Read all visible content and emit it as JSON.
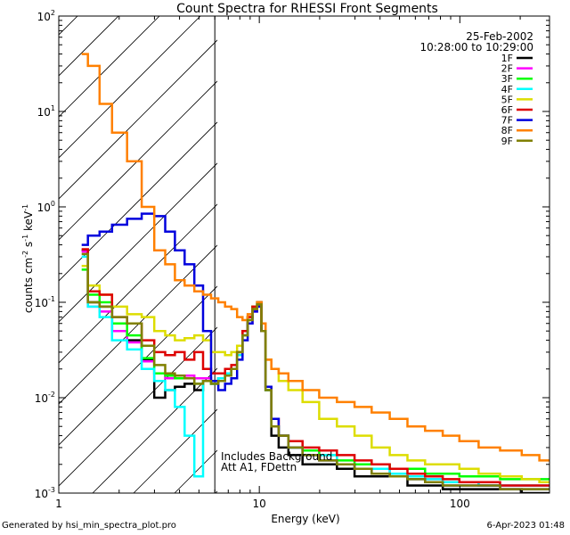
{
  "chart_data": {
    "type": "line",
    "title": "Count Spectra for RHESSI Front Segments",
    "xlabel": "Energy (keV)",
    "ylabel_main": "counts cm",
    "ylabel_sup1": "-2",
    "ylabel_mid": " s",
    "ylabel_sup2": "-1",
    "ylabel_end": " keV",
    "ylabel_sup3": "-1",
    "xscale": "log",
    "yscale": "log",
    "xlim": [
      1,
      280
    ],
    "ylim": [
      0.001,
      100
    ],
    "x_tick_labels": [
      {
        "value": 1,
        "label": "1"
      },
      {
        "value": 10,
        "label": "10"
      },
      {
        "value": 100,
        "label": "100"
      }
    ],
    "y_tick_labels": [
      {
        "value": 0.001,
        "base": "10",
        "exp": "-3"
      },
      {
        "value": 0.01,
        "base": "10",
        "exp": "-2"
      },
      {
        "value": 0.1,
        "base": "10",
        "exp": "-1"
      },
      {
        "value": 1,
        "base": "10",
        "exp": "0"
      },
      {
        "value": 10,
        "base": "10",
        "exp": "1"
      },
      {
        "value": 100,
        "base": "10",
        "exp": "2"
      }
    ],
    "date": "25-Feb-2002",
    "time_range": "10:28:00 to 10:29:00",
    "hatched_region": [
      1,
      6
    ],
    "annotation_line1": "Includes Background",
    "annotation_line2": "Att A1, FDettn",
    "legend_position": "top-right",
    "series": [
      {
        "name": "1F",
        "color": "#000000",
        "x": [
          1.3,
          1.5,
          1.7,
          2.0,
          2.4,
          2.8,
          3.2,
          3.6,
          4.0,
          4.5,
          5.0,
          5.5,
          6.0,
          6.5,
          7.0,
          7.5,
          8.0,
          8.5,
          9.0,
          9.5,
          10.0,
          10.5,
          11.0,
          12.0,
          13.0,
          15.0,
          18.0,
          22.0,
          27.0,
          33.0,
          40.0,
          50.0,
          60.0,
          75.0,
          90.0,
          110.0,
          140.0,
          180.0,
          230.0,
          270.0
        ],
        "y": [
          0.35,
          0.1,
          0.09,
          0.05,
          0.04,
          0.025,
          0.01,
          0.012,
          0.013,
          0.014,
          0.012,
          0.015,
          0.014,
          0.016,
          0.018,
          0.02,
          0.03,
          0.05,
          0.07,
          0.09,
          0.1,
          0.05,
          0.012,
          0.004,
          0.003,
          0.0025,
          0.002,
          0.002,
          0.0018,
          0.0015,
          0.0015,
          0.0015,
          0.0012,
          0.0012,
          0.0011,
          0.0011,
          0.0011,
          0.0011,
          0.001,
          0.001
        ]
      },
      {
        "name": "2F",
        "color": "#ff00ff",
        "x": [
          1.3,
          1.5,
          1.7,
          2.0,
          2.4,
          2.8,
          3.2,
          3.6,
          4.0,
          4.5,
          5.0,
          5.5,
          6.0,
          6.5,
          7.0,
          7.5,
          8.0,
          8.5,
          9.0,
          9.5,
          10.0,
          10.5,
          11.0,
          12.0,
          13.0,
          15.0,
          18.0,
          22.0,
          27.0,
          33.0,
          40.0,
          50.0,
          60.0,
          75.0,
          90.0,
          110.0,
          140.0,
          180.0,
          230.0,
          270.0
        ],
        "y": [
          0.34,
          0.09,
          0.08,
          0.05,
          0.038,
          0.024,
          0.018,
          0.016,
          0.017,
          0.017,
          0.016,
          0.016,
          0.015,
          0.016,
          0.018,
          0.02,
          0.028,
          0.045,
          0.06,
          0.08,
          0.09,
          0.05,
          0.012,
          0.005,
          0.004,
          0.003,
          0.0025,
          0.0025,
          0.002,
          0.0018,
          0.0018,
          0.0016,
          0.0015,
          0.0014,
          0.0013,
          0.0013,
          0.0012,
          0.0012,
          0.0012,
          0.0012
        ]
      },
      {
        "name": "3F",
        "color": "#00ff00",
        "x": [
          1.3,
          1.5,
          1.7,
          2.0,
          2.4,
          2.8,
          3.2,
          3.6,
          4.0,
          4.5,
          5.0,
          5.5,
          6.0,
          6.5,
          7.0,
          7.5,
          8.0,
          8.5,
          9.0,
          9.5,
          10.0,
          10.5,
          11.0,
          12.0,
          13.0,
          15.0,
          18.0,
          22.0,
          27.0,
          33.0,
          40.0,
          50.0,
          60.0,
          75.0,
          90.0,
          110.0,
          140.0,
          180.0,
          230.0,
          270.0
        ],
        "y": [
          0.22,
          0.12,
          0.1,
          0.06,
          0.045,
          0.026,
          0.018,
          0.017,
          0.016,
          0.016,
          0.014,
          0.015,
          0.014,
          0.016,
          0.017,
          0.02,
          0.03,
          0.045,
          0.07,
          0.09,
          0.1,
          0.05,
          0.012,
          0.005,
          0.004,
          0.003,
          0.0028,
          0.0025,
          0.0022,
          0.002,
          0.002,
          0.0018,
          0.0018,
          0.0016,
          0.0016,
          0.0015,
          0.0015,
          0.0014,
          0.0014,
          0.0014
        ]
      },
      {
        "name": "4F",
        "color": "#00ffff",
        "x": [
          1.3,
          1.5,
          1.7,
          2.0,
          2.4,
          2.8,
          3.2,
          3.6,
          4.0,
          4.5,
          5.0,
          5.5,
          6.0,
          6.5,
          7.0,
          7.5,
          8.0,
          8.5,
          9.0,
          9.5,
          10.0,
          10.5,
          11.0,
          12.0,
          13.0,
          15.0,
          18.0,
          22.0,
          27.0,
          33.0,
          40.0,
          50.0,
          60.0,
          75.0,
          90.0,
          110.0,
          140.0,
          180.0,
          230.0,
          270.0
        ],
        "y": [
          0.3,
          0.09,
          0.07,
          0.04,
          0.032,
          0.02,
          0.015,
          0.012,
          0.008,
          0.004,
          0.0015,
          0.015,
          0.014,
          0.016,
          0.018,
          0.02,
          0.028,
          0.045,
          0.065,
          0.085,
          0.095,
          0.05,
          0.012,
          0.005,
          0.004,
          0.003,
          0.0025,
          0.0025,
          0.002,
          0.0018,
          0.0018,
          0.0016,
          0.0015,
          0.0014,
          0.0013,
          0.0013,
          0.0012,
          0.0012,
          0.0012,
          0.0012
        ]
      },
      {
        "name": "5F",
        "color": "#dddd00",
        "x": [
          1.3,
          1.5,
          1.7,
          2.0,
          2.4,
          2.8,
          3.2,
          3.6,
          4.0,
          4.5,
          5.0,
          5.5,
          6.0,
          6.5,
          7.0,
          7.5,
          8.0,
          8.5,
          9.0,
          9.5,
          10.0,
          10.5,
          11.0,
          12.0,
          13.0,
          15.0,
          18.0,
          22.0,
          27.0,
          33.0,
          40.0,
          50.0,
          60.0,
          75.0,
          90.0,
          110.0,
          140.0,
          180.0,
          230.0,
          270.0
        ],
        "y": [
          0.24,
          0.15,
          0.12,
          0.09,
          0.075,
          0.07,
          0.05,
          0.045,
          0.04,
          0.042,
          0.045,
          0.04,
          0.03,
          0.03,
          0.028,
          0.03,
          0.035,
          0.05,
          0.07,
          0.09,
          0.1,
          0.06,
          0.025,
          0.02,
          0.015,
          0.012,
          0.009,
          0.006,
          0.005,
          0.004,
          0.003,
          0.0025,
          0.0022,
          0.002,
          0.002,
          0.0018,
          0.0016,
          0.0015,
          0.0014,
          0.0013
        ]
      },
      {
        "name": "6F",
        "color": "#dd0000",
        "x": [
          1.3,
          1.5,
          1.7,
          2.0,
          2.4,
          2.8,
          3.2,
          3.6,
          4.0,
          4.5,
          5.0,
          5.5,
          6.0,
          6.5,
          7.0,
          7.5,
          8.0,
          8.5,
          9.0,
          9.5,
          10.0,
          10.5,
          11.0,
          12.0,
          13.0,
          15.0,
          18.0,
          22.0,
          27.0,
          33.0,
          40.0,
          50.0,
          60.0,
          75.0,
          90.0,
          110.0,
          140.0,
          180.0,
          230.0,
          270.0
        ],
        "y": [
          0.36,
          0.13,
          0.12,
          0.07,
          0.06,
          0.04,
          0.03,
          0.028,
          0.03,
          0.025,
          0.03,
          0.02,
          0.018,
          0.018,
          0.02,
          0.022,
          0.03,
          0.05,
          0.07,
          0.09,
          0.1,
          0.05,
          0.013,
          0.006,
          0.004,
          0.0035,
          0.003,
          0.0028,
          0.0025,
          0.0022,
          0.002,
          0.0018,
          0.0016,
          0.0015,
          0.0014,
          0.0013,
          0.0013,
          0.0012,
          0.0012,
          0.0012
        ]
      },
      {
        "name": "7F",
        "color": "#0000dd",
        "x": [
          1.3,
          1.5,
          1.7,
          2.0,
          2.4,
          2.8,
          3.2,
          3.6,
          4.0,
          4.5,
          5.0,
          5.5,
          6.0,
          6.5,
          7.0,
          7.5,
          8.0,
          8.5,
          9.0,
          9.5,
          10.0,
          10.5,
          11.0,
          12.0,
          13.0,
          15.0,
          18.0,
          22.0,
          27.0,
          33.0,
          40.0,
          50.0,
          60.0,
          75.0,
          90.0,
          110.0,
          140.0,
          180.0,
          230.0,
          270.0
        ],
        "y": [
          0.4,
          0.5,
          0.55,
          0.65,
          0.75,
          0.85,
          0.8,
          0.55,
          0.35,
          0.25,
          0.15,
          0.05,
          0.015,
          0.012,
          0.014,
          0.016,
          0.025,
          0.04,
          0.06,
          0.08,
          0.09,
          0.05,
          0.013,
          0.006,
          0.004,
          0.003,
          0.0025,
          0.0022,
          0.002,
          0.0018,
          0.0016,
          0.0015,
          0.0014,
          0.0013,
          0.0012,
          0.0012,
          0.0012,
          0.0011,
          0.0011,
          0.0011
        ]
      },
      {
        "name": "8F",
        "color": "#ff8000",
        "x": [
          1.3,
          1.5,
          1.7,
          2.0,
          2.4,
          2.8,
          3.2,
          3.6,
          4.0,
          4.5,
          5.0,
          5.5,
          6.0,
          6.5,
          7.0,
          7.5,
          8.0,
          8.5,
          9.0,
          9.5,
          10.0,
          10.5,
          11.0,
          12.0,
          13.0,
          15.0,
          18.0,
          22.0,
          27.0,
          33.0,
          40.0,
          50.0,
          60.0,
          75.0,
          90.0,
          110.0,
          140.0,
          180.0,
          230.0,
          270.0
        ],
        "y": [
          40,
          30,
          12,
          6,
          3,
          1,
          0.35,
          0.25,
          0.17,
          0.15,
          0.13,
          0.12,
          0.11,
          0.1,
          0.09,
          0.085,
          0.07,
          0.065,
          0.075,
          0.085,
          0.1,
          0.06,
          0.025,
          0.02,
          0.018,
          0.015,
          0.012,
          0.01,
          0.009,
          0.008,
          0.007,
          0.006,
          0.005,
          0.0045,
          0.004,
          0.0035,
          0.003,
          0.0028,
          0.0025,
          0.0022
        ]
      },
      {
        "name": "9F",
        "color": "#808000",
        "x": [
          1.3,
          1.5,
          1.7,
          2.0,
          2.4,
          2.8,
          3.2,
          3.6,
          4.0,
          4.5,
          5.0,
          5.5,
          6.0,
          6.5,
          7.0,
          7.5,
          8.0,
          8.5,
          9.0,
          9.5,
          10.0,
          10.5,
          11.0,
          12.0,
          13.0,
          15.0,
          18.0,
          22.0,
          27.0,
          33.0,
          40.0,
          50.0,
          60.0,
          75.0,
          90.0,
          110.0,
          140.0,
          180.0,
          230.0,
          270.0
        ],
        "y": [
          0.32,
          0.1,
          0.09,
          0.07,
          0.06,
          0.035,
          0.022,
          0.018,
          0.017,
          0.016,
          0.014,
          0.015,
          0.014,
          0.015,
          0.017,
          0.02,
          0.03,
          0.045,
          0.065,
          0.085,
          0.095,
          0.05,
          0.012,
          0.005,
          0.004,
          0.003,
          0.0025,
          0.0022,
          0.002,
          0.0018,
          0.0016,
          0.0015,
          0.0014,
          0.0013,
          0.0012,
          0.0012,
          0.0012,
          0.0011,
          0.0011,
          0.0011
        ]
      }
    ]
  },
  "footer": {
    "generated_by": "Generated by hsi_min_spectra_plot.pro",
    "timestamp": "6-Apr-2023 01:48"
  }
}
